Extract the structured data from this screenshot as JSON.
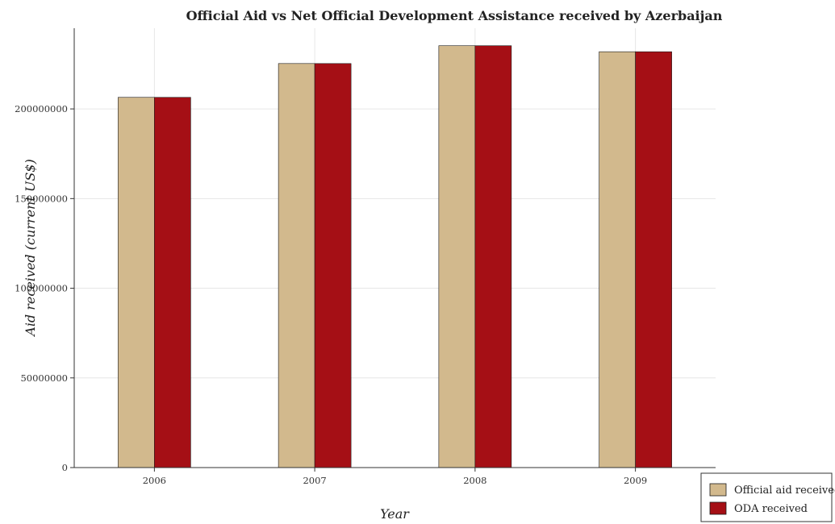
{
  "colors": {
    "official_aid": "#d2b98d",
    "oda": "#a50f15",
    "bar_stroke": "#1a1a1a",
    "grid": "#e6e6e6",
    "axis": "#333333"
  },
  "chart_data": {
    "type": "bar",
    "title": "Official Aid vs Net Official Development Assistance received by Azerbaijan",
    "xlabel": "Year",
    "ylabel": "Aid received (current US$)",
    "categories": [
      "2006",
      "2007",
      "2008",
      "2009"
    ],
    "series": [
      {
        "name": "Official aid received",
        "color": "#d2b98d",
        "values": [
          206450000,
          225300000,
          235240000,
          231890000
        ]
      },
      {
        "name": "ODA received",
        "color": "#a50f15",
        "values": [
          206450000,
          225300000,
          235240000,
          231890000
        ]
      }
    ],
    "ylim": [
      0,
      245000000
    ],
    "yticks": [
      0,
      50000000,
      100000000,
      150000000,
      200000000
    ],
    "ytick_labels": [
      "0",
      "50000000",
      "100000000",
      "150000000",
      "200000000"
    ],
    "grid": true,
    "legend_position": "bottom-right"
  }
}
